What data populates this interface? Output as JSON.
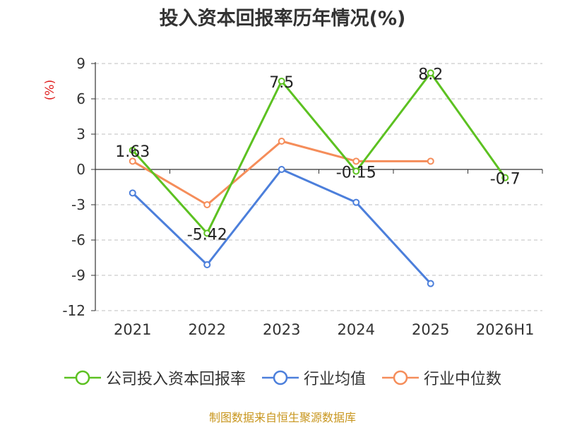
{
  "title": "投入资本回报率历年情况(%)",
  "source_note": "制图数据来自恒生聚源数据库",
  "chart_data": {
    "type": "line",
    "title": "投入资本回报率历年情况(%)",
    "ylabel": "(%)",
    "xlabel": "",
    "categories": [
      "2021",
      "2022",
      "2023",
      "2024",
      "2025",
      "2026H1"
    ],
    "ylim": [
      -12,
      9
    ],
    "yticks": [
      9,
      6,
      3,
      0,
      -3,
      -6,
      -9,
      -12
    ],
    "ytick_labels": [
      "9",
      "6",
      "3",
      "0",
      "-3",
      "-6",
      "-9",
      "-12"
    ],
    "grid": true,
    "legend_position": "bottom",
    "series": [
      {
        "name": "公司投入资本回报率",
        "color": "#5cc121",
        "values": [
          1.63,
          -5.42,
          7.5,
          -0.15,
          8.2,
          -0.7
        ],
        "labels": [
          "1.63",
          "-5.42",
          "7.5",
          "-0.15",
          "8.2",
          "-0.7"
        ]
      },
      {
        "name": "行业均值",
        "color": "#4c7fdb",
        "values": [
          -2.0,
          -8.1,
          0.0,
          -2.8,
          -9.7,
          null
        ],
        "labels": []
      },
      {
        "name": "行业中位数",
        "color": "#f58d5a",
        "values": [
          0.7,
          -3.0,
          2.4,
          0.7,
          0.7,
          null
        ],
        "labels": []
      }
    ]
  }
}
